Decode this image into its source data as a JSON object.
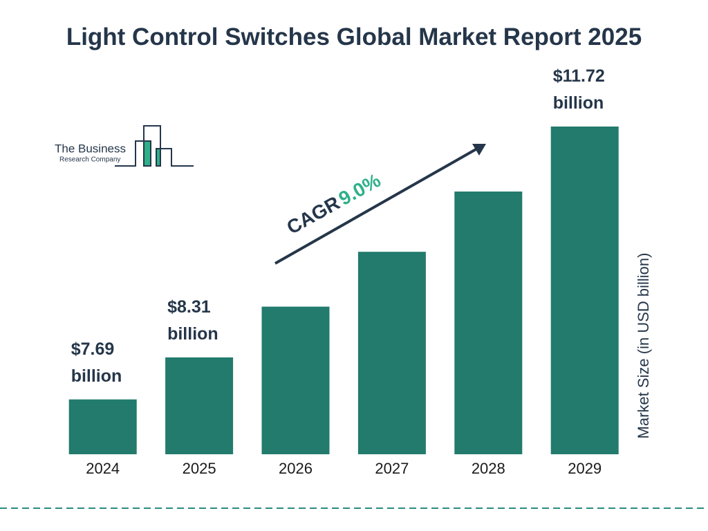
{
  "chart_data": {
    "type": "bar",
    "title": "Light Control Switches Global Market Report 2025",
    "categories": [
      "2024",
      "2025",
      "2026",
      "2027",
      "2028",
      "2029"
    ],
    "values": [
      7.69,
      8.31,
      9.06,
      9.87,
      10.76,
      11.72
    ],
    "value_labels": [
      "$7.69 billion",
      "$8.31 billion",
      null,
      null,
      null,
      "$11.72 billion"
    ],
    "color": "#227b6c",
    "ylim": [
      6.88,
      11.72
    ],
    "y_axis_label": "Market Size (in USD billion)",
    "cagr_label": "CAGR",
    "cagr_value": "9.0%",
    "logo_line1": "The Business",
    "logo_line2": "Research Company"
  }
}
